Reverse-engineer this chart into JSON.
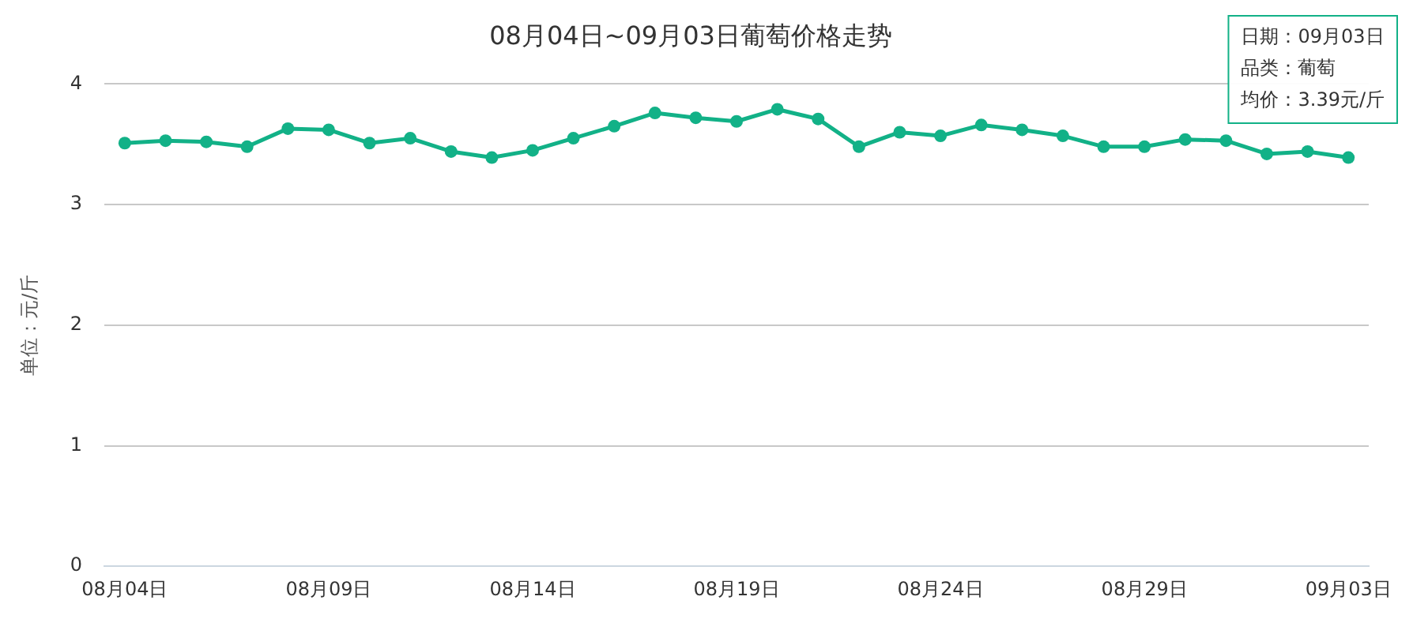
{
  "chart_data": {
    "type": "line",
    "title": "08月04日~09月03日葡萄价格走势",
    "ylabel": "单位：元/斤",
    "categories": [
      "08月04日",
      null,
      null,
      null,
      null,
      "08月09日",
      null,
      null,
      null,
      null,
      "08月14日",
      null,
      null,
      null,
      null,
      "08月19日",
      null,
      null,
      null,
      null,
      "08月24日",
      null,
      null,
      null,
      null,
      "08月29日",
      null,
      null,
      null,
      null,
      "09月03日"
    ],
    "series": [
      {
        "color": "#12b187",
        "values": [
          3.51,
          3.53,
          3.52,
          3.48,
          3.63,
          3.62,
          3.51,
          3.55,
          3.44,
          3.39,
          3.45,
          3.55,
          3.65,
          3.76,
          3.72,
          3.69,
          3.79,
          3.71,
          3.48,
          3.6,
          3.57,
          3.66,
          3.62,
          3.57,
          3.48,
          3.48,
          3.54,
          3.53,
          3.42,
          3.44,
          3.39
        ]
      }
    ],
    "ylim": [
      0,
      4
    ],
    "yticks": [
      0,
      1,
      2,
      3,
      4
    ],
    "grid": "y",
    "legend": false,
    "marker": "circle",
    "line_style": "solid",
    "annotations": [
      "日期：09月03日",
      "品类：葡萄",
      "均价：3.39元/斤"
    ]
  }
}
